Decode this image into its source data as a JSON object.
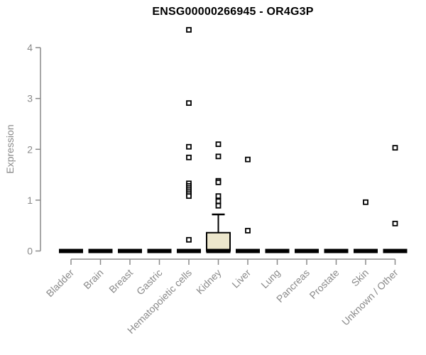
{
  "chart_data": {
    "type": "boxplot",
    "title": "ENSG00000266945 - OR4G3P",
    "xlabel": "",
    "ylabel": "Expression",
    "ylim": [
      0,
      4.5
    ],
    "yticks": [
      0,
      1,
      2,
      3,
      4
    ],
    "grid": false,
    "legend": "none",
    "categories": [
      "Bladder",
      "Brain",
      "Breast",
      "Gastric",
      "Hematopoietic cells",
      "Kidney",
      "Liver",
      "Lung",
      "Pancreas",
      "Prostate",
      "Skin",
      "Unknown / Other"
    ],
    "series": [
      {
        "category": "Bladder",
        "median": 0,
        "q1": 0,
        "q3": 0,
        "whisker_low": 0,
        "whisker_high": 0,
        "outliers": []
      },
      {
        "category": "Brain",
        "median": 0,
        "q1": 0,
        "q3": 0,
        "whisker_low": 0,
        "whisker_high": 0,
        "outliers": []
      },
      {
        "category": "Breast",
        "median": 0,
        "q1": 0,
        "q3": 0,
        "whisker_low": 0,
        "whisker_high": 0,
        "outliers": []
      },
      {
        "category": "Gastric",
        "median": 0,
        "q1": 0,
        "q3": 0,
        "whisker_low": 0,
        "whisker_high": 0,
        "outliers": []
      },
      {
        "category": "Hematopoietic cells",
        "median": 0,
        "q1": 0,
        "q3": 0,
        "whisker_low": 0,
        "whisker_high": 0,
        "outliers": [
          4.35,
          2.91,
          2.05,
          1.84,
          1.33,
          1.28,
          1.24,
          1.2,
          1.16,
          1.12,
          1.08,
          0.22
        ]
      },
      {
        "category": "Kidney",
        "median": 0,
        "q1": 0,
        "q3": 0.36,
        "whisker_low": 0,
        "whisker_high": 0.72,
        "outliers": [
          2.1,
          1.86,
          1.38,
          1.35,
          1.08,
          0.98,
          0.89
        ]
      },
      {
        "category": "Liver",
        "median": 0,
        "q1": 0,
        "q3": 0,
        "whisker_low": 0,
        "whisker_high": 0,
        "outliers": [
          1.8,
          0.4
        ]
      },
      {
        "category": "Lung",
        "median": 0,
        "q1": 0,
        "q3": 0,
        "whisker_low": 0,
        "whisker_high": 0,
        "outliers": []
      },
      {
        "category": "Pancreas",
        "median": 0,
        "q1": 0,
        "q3": 0,
        "whisker_low": 0,
        "whisker_high": 0,
        "outliers": []
      },
      {
        "category": "Prostate",
        "median": 0,
        "q1": 0,
        "q3": 0,
        "whisker_low": 0,
        "whisker_high": 0,
        "outliers": []
      },
      {
        "category": "Skin",
        "median": 0,
        "q1": 0,
        "q3": 0,
        "whisker_low": 0,
        "whisker_high": 0,
        "outliers": [
          0.96
        ]
      },
      {
        "category": "Unknown / Other",
        "median": 0,
        "q1": 0,
        "q3": 0,
        "whisker_low": 0,
        "whisker_high": 0,
        "outliers": [
          2.03,
          0.54
        ]
      }
    ],
    "style": {
      "background": "#ffffff",
      "title_color": "#000000",
      "axis_color": "#8a8a8a",
      "text_color": "#8a8a8a",
      "box_fill": "#ece6cc",
      "box_border": "#000000",
      "median_color": "#000000",
      "whisker_color": "#000000",
      "point_stroke": "#000000",
      "point_fill": "#ffffff"
    }
  }
}
